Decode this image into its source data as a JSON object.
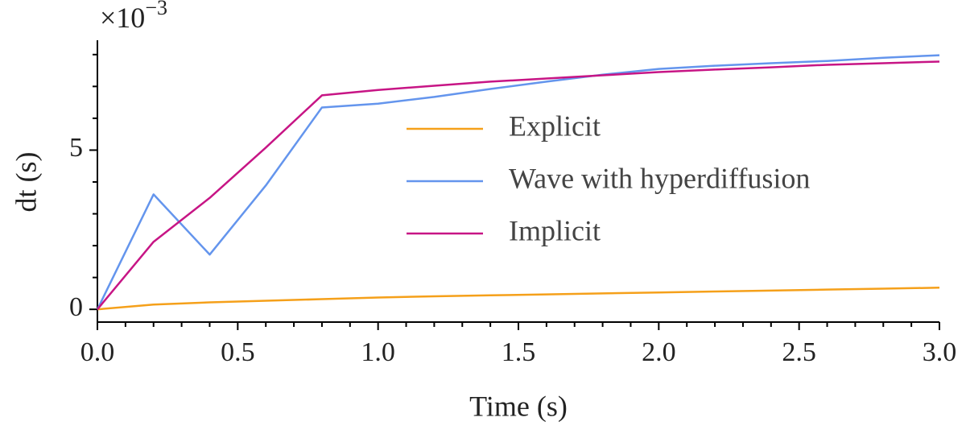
{
  "chart_data": {
    "type": "line",
    "xlabel": "Time (s)",
    "ylabel": "dt (s)",
    "y_offset_text": {
      "base": "×10",
      "exponent": "−3"
    },
    "x": [
      0,
      0.2,
      0.4,
      0.6,
      0.8,
      1.0,
      1.2,
      1.4,
      1.6,
      1.8,
      2.0,
      2.2,
      2.4,
      2.6,
      2.8,
      3.0
    ],
    "series": [
      {
        "name": "Explicit",
        "color": "#f5a01a",
        "values": [
          0,
          0.15,
          0.22,
          0.27,
          0.32,
          0.37,
          0.41,
          0.44,
          0.47,
          0.5,
          0.53,
          0.56,
          0.59,
          0.62,
          0.65,
          0.68
        ]
      },
      {
        "name": "Wave with hyperdiffusion",
        "color": "#6495ed",
        "values": [
          0,
          3.61,
          1.72,
          3.89,
          6.34,
          6.46,
          6.67,
          6.92,
          7.15,
          7.37,
          7.55,
          7.65,
          7.73,
          7.8,
          7.9,
          7.98
        ]
      },
      {
        "name": "Implicit",
        "color": "#c71585",
        "values": [
          0,
          2.12,
          3.5,
          5.08,
          6.72,
          6.89,
          7.02,
          7.15,
          7.25,
          7.35,
          7.45,
          7.53,
          7.6,
          7.68,
          7.73,
          7.78
        ]
      }
    ],
    "xlim": [
      0,
      3.0
    ],
    "ylim": [
      -0.4,
      8.45
    ],
    "xticks": [
      {
        "value": 0,
        "label": "0.0"
      },
      {
        "value": 0.5,
        "label": "0.5"
      },
      {
        "value": 1.0,
        "label": "1.0"
      },
      {
        "value": 1.5,
        "label": "1.5"
      },
      {
        "value": 2.0,
        "label": "2.0"
      },
      {
        "value": 2.5,
        "label": "2.5"
      },
      {
        "value": 3.0,
        "label": "3.0"
      }
    ],
    "xminorticks": [
      0.1,
      0.2,
      0.3,
      0.4,
      0.6,
      0.7,
      0.8,
      0.9,
      1.1,
      1.2,
      1.3,
      1.4,
      1.6,
      1.7,
      1.8,
      1.9,
      2.1,
      2.2,
      2.3,
      2.4,
      2.6,
      2.7,
      2.8,
      2.9
    ],
    "yticks": [
      0,
      5
    ],
    "yminorticks": [
      1,
      2,
      3,
      4,
      6,
      7,
      8
    ],
    "grid": false,
    "legend_position": "center-right"
  }
}
